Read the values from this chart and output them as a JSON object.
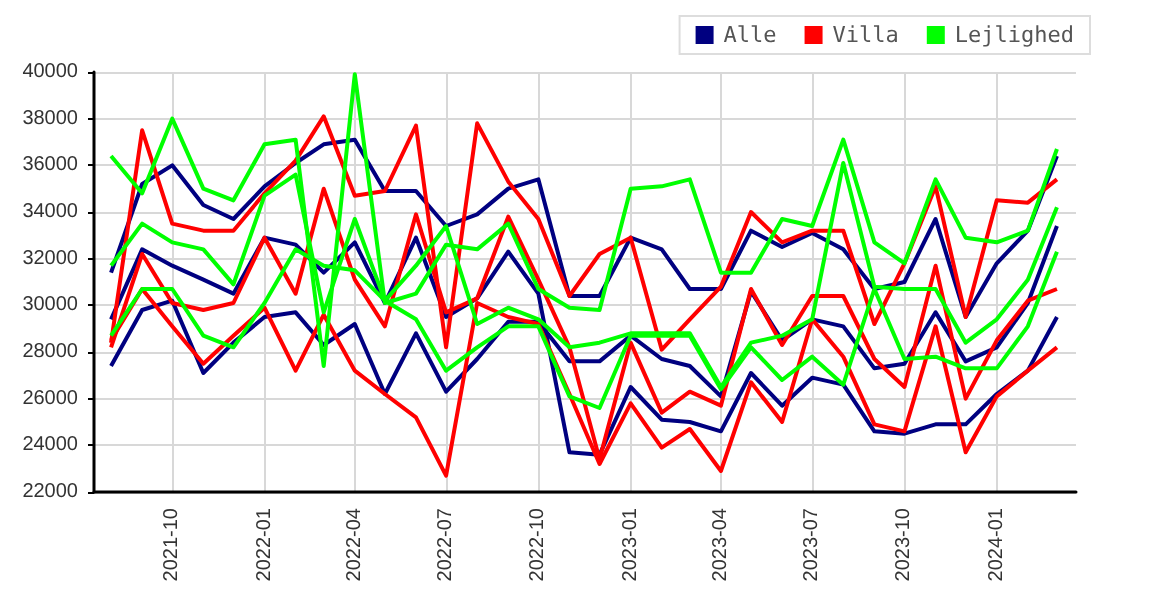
{
  "chart_data": {
    "type": "line",
    "x": [
      "2021-08",
      "2021-09",
      "2021-10",
      "2021-11",
      "2021-12",
      "2022-01",
      "2022-02",
      "2022-03",
      "2022-04",
      "2022-05",
      "2022-06",
      "2022-07",
      "2022-08",
      "2022-09",
      "2022-10",
      "2022-11",
      "2022-12",
      "2023-01",
      "2023-02",
      "2023-03",
      "2023-04",
      "2023-05",
      "2023-06",
      "2023-07",
      "2023-08",
      "2023-09",
      "2023-10",
      "2023-11",
      "2023-12",
      "2024-01",
      "2024-02",
      "2024-03"
    ],
    "series": [
      {
        "color": "#000080",
        "values": [
          31400,
          35200,
          36000,
          34300,
          33700,
          35100,
          36100,
          36900,
          37100,
          34900,
          34900,
          33400,
          33900,
          35000,
          35400,
          30400,
          30400,
          32900,
          32400,
          30700,
          30700,
          33200,
          32500,
          33100,
          32400,
          30700,
          31000,
          33700,
          29500,
          31800,
          33200,
          36400
        ]
      },
      {
        "color": "#000080",
        "values": [
          29400,
          32400,
          31700,
          31100,
          30500,
          32900,
          32600,
          31400,
          32700,
          30100,
          32900,
          29500,
          30300,
          32300,
          30500,
          23700,
          23600,
          26500,
          25100,
          25000,
          24600,
          27100,
          25700,
          26900,
          26600,
          24600,
          24500,
          24900,
          24900,
          26200,
          27200,
          29500
        ]
      },
      {
        "name": "Alle",
        "color": "#000080",
        "values": [
          27400,
          29800,
          30200,
          27100,
          28400,
          29500,
          29700,
          28300,
          29200,
          26200,
          28800,
          26300,
          27700,
          29300,
          29300,
          27600,
          27600,
          28700,
          27700,
          27400,
          26100,
          30600,
          28500,
          29400,
          29100,
          27300,
          27500,
          29700,
          27600,
          28200,
          30100,
          33400
        ]
      },
      {
        "color": "#ff0000",
        "values": [
          28400,
          37500,
          33500,
          33200,
          33200,
          34800,
          36200,
          38100,
          34700,
          34900,
          37700,
          28200,
          37800,
          35300,
          33700,
          30400,
          32200,
          32900,
          28100,
          29400,
          30800,
          34000,
          32700,
          33200,
          33200,
          29200,
          31800,
          35100,
          29500,
          34500,
          34400,
          35400
        ]
      },
      {
        "color": "#ff0000",
        "values": [
          28200,
          32200,
          30100,
          29800,
          30100,
          32900,
          30500,
          35000,
          31100,
          29100,
          33900,
          29700,
          30300,
          33800,
          31100,
          28200,
          23400,
          28400,
          25400,
          26300,
          25700,
          30700,
          28300,
          30400,
          30400,
          27700,
          26500,
          31700,
          26000,
          28500,
          30200,
          30700
        ]
      },
      {
        "name": "Villa",
        "color": "#ff0000",
        "values": [
          28500,
          30700,
          29100,
          27500,
          28700,
          29900,
          27200,
          29600,
          27200,
          26200,
          25200,
          22700,
          30100,
          29500,
          29200,
          26200,
          23200,
          25800,
          23900,
          24700,
          22900,
          26700,
          25000,
          29400,
          27800,
          24900,
          24600,
          29100,
          23700,
          26100,
          27200,
          28200
        ]
      },
      {
        "color": "#00ff00",
        "values": [
          36400,
          34800,
          38000,
          35000,
          34500,
          36900,
          37100,
          27400,
          39900,
          30100,
          30500,
          32600,
          32400,
          33500,
          30700,
          29900,
          29800,
          35000,
          35100,
          35400,
          31400,
          31400,
          33700,
          33400,
          37100,
          32700,
          31800,
          35400,
          32900,
          32700,
          33200,
          36700
        ]
      },
      {
        "color": "#00ff00",
        "values": [
          31700,
          33500,
          32700,
          32400,
          30900,
          34700,
          35600,
          29700,
          33700,
          30200,
          31700,
          33400,
          29200,
          29900,
          29400,
          28200,
          28400,
          28800,
          28800,
          28800,
          26500,
          28400,
          28700,
          29400,
          36100,
          30800,
          30700,
          30700,
          28400,
          29400,
          31100,
          34200
        ]
      },
      {
        "name": "Lejlighed",
        "color": "#00ff00",
        "values": [
          28700,
          30700,
          30700,
          28700,
          28200,
          30100,
          32400,
          31700,
          31500,
          30200,
          29400,
          27200,
          28200,
          29100,
          29100,
          26100,
          25600,
          28700,
          28700,
          28700,
          26400,
          28200,
          26800,
          27800,
          26600,
          30700,
          27700,
          27800,
          27300,
          27300,
          29100,
          32300
        ]
      }
    ],
    "xlim": [
      "2021-07-15",
      "2024-03-20"
    ],
    "xticks": [
      "2021-10",
      "2022-01",
      "2022-04",
      "2022-07",
      "2022-10",
      "2023-01",
      "2023-04",
      "2023-07",
      "2023-10",
      "2024-01"
    ],
    "ylim": [
      22000,
      40000
    ],
    "yticks": [
      22000,
      24000,
      26000,
      28000,
      30000,
      32000,
      34000,
      36000,
      38000,
      40000
    ],
    "grid": true,
    "legend": "top right",
    "marker": "none",
    "line_style": "solid"
  }
}
